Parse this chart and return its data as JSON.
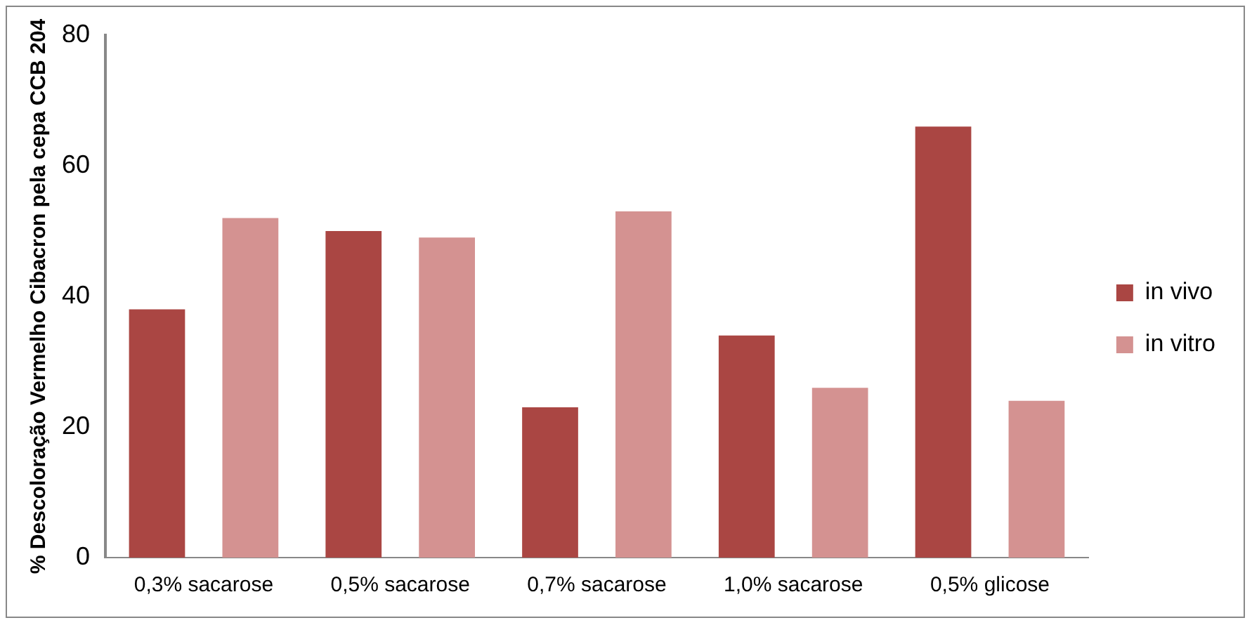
{
  "chart_data": {
    "type": "bar",
    "ylabel": "% Descoloração Vermelho Cibacron pela cepa CCB 204",
    "categories": [
      "0,3% sacarose",
      "0,5% sacarose",
      "0,7% sacarose",
      "1,0% sacarose",
      "0,5% glicose"
    ],
    "series": [
      {
        "name": "in vivo",
        "color": "#aa4643",
        "values": [
          38,
          50,
          23,
          34,
          66
        ]
      },
      {
        "name": "in vitro",
        "color": "#d49291",
        "values": [
          52,
          49,
          53,
          26,
          24
        ]
      }
    ],
    "ylim": [
      0,
      80
    ],
    "yticks": [
      0,
      20,
      40,
      60,
      80
    ],
    "grid": false,
    "legend": "right"
  }
}
